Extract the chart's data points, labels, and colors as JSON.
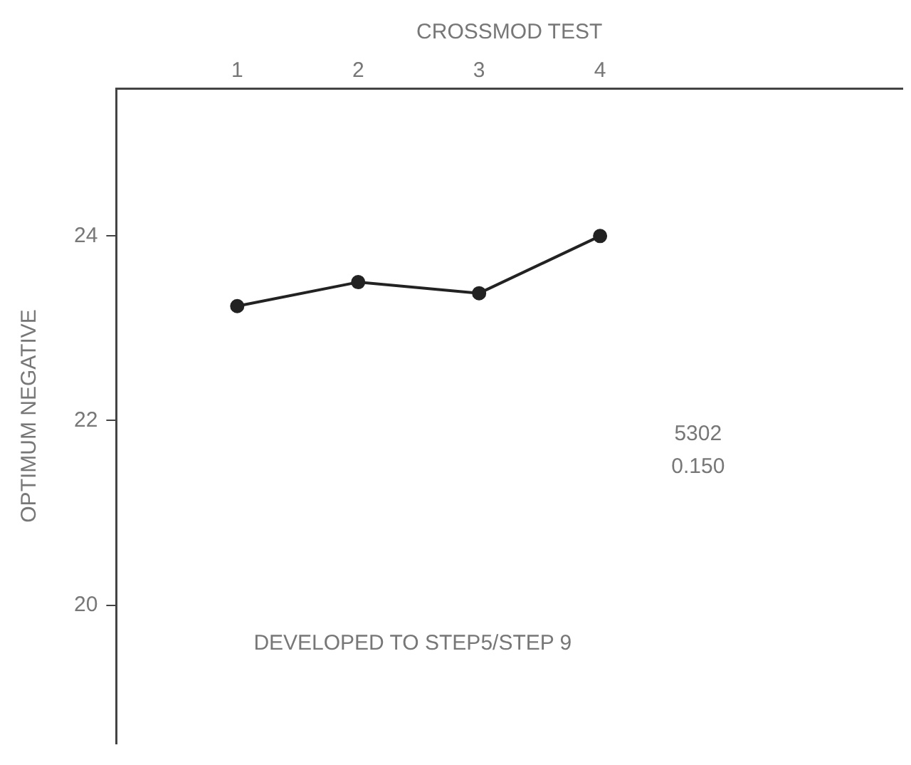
{
  "chart_data": {
    "type": "line",
    "xlabel": "CROSSMOD TEST",
    "ylabel": "OPTIMUM NEGATIVE",
    "x": [
      1,
      2,
      3,
      4
    ],
    "series": [
      {
        "color": "#222222",
        "values": [
          23.24,
          23.5,
          23.38,
          24.0
        ]
      }
    ],
    "xlim": [
      0,
      6.5
    ],
    "xticks": [
      1,
      2,
      3,
      4
    ],
    "ylim": [
      18.5,
      25.6
    ],
    "yticks": [
      20,
      22,
      24
    ],
    "marker": "circle",
    "line_style": "solid",
    "grid": false,
    "legend": false,
    "annotations": [
      "5302",
      "0.150",
      "DEVELOPED TO STEP5/STEP 9"
    ]
  }
}
